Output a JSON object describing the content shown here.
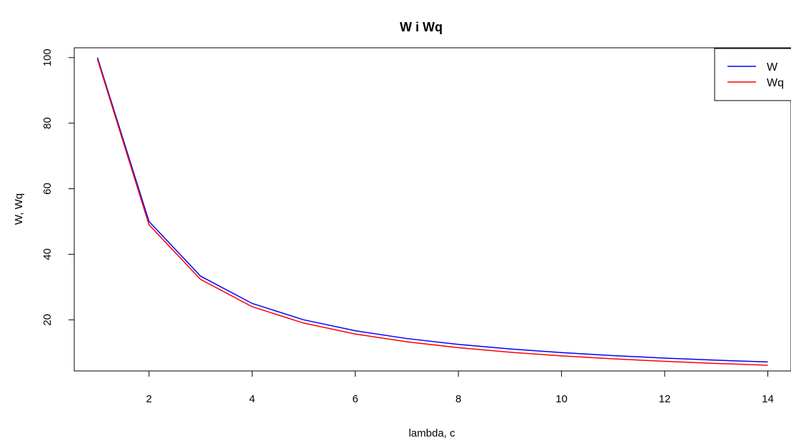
{
  "chart_data": {
    "type": "line",
    "title": "W i Wq",
    "xlabel": "lambda, c",
    "ylabel": "W, Wq",
    "x": [
      1,
      2,
      3,
      4,
      5,
      6,
      7,
      8,
      9,
      10,
      11,
      12,
      13,
      14
    ],
    "xlim": [
      0.55,
      14.45
    ],
    "ylim": [
      4.4,
      103
    ],
    "x_ticks": [
      "2",
      "4",
      "6",
      "8",
      "10",
      "12",
      "14"
    ],
    "y_ticks": [
      "20",
      "40",
      "60",
      "80",
      "100"
    ],
    "grid": false,
    "legend_position": "top-right",
    "series": [
      {
        "name": "W",
        "color": "#0000ff",
        "values": [
          100,
          50,
          33.33,
          25,
          20,
          16.67,
          14.29,
          12.5,
          11.11,
          10,
          9.09,
          8.33,
          7.69,
          7.14
        ]
      },
      {
        "name": "Wq",
        "color": "#ff0000",
        "values": [
          99.5,
          49,
          32.33,
          24,
          19,
          15.67,
          13.29,
          11.5,
          10.11,
          9,
          8.09,
          7.33,
          6.69,
          6.14
        ]
      }
    ]
  }
}
